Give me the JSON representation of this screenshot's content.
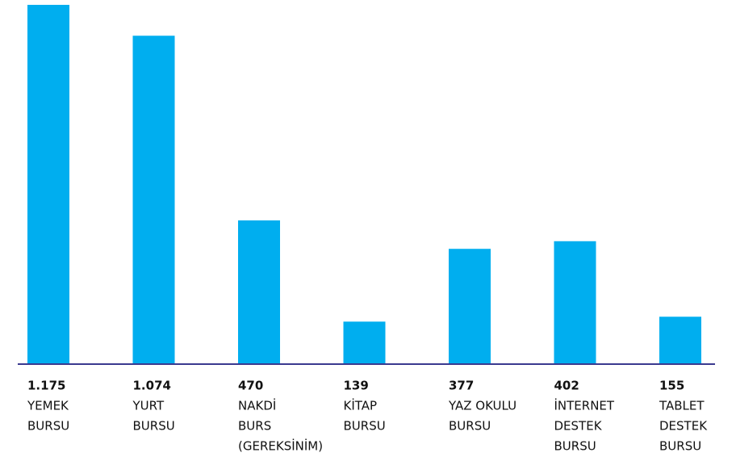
{
  "chart_data": {
    "type": "bar",
    "color": "#00aeef",
    "categories": [
      [
        "YEMEK",
        "BURSU"
      ],
      [
        "YURT",
        "BURSU"
      ],
      [
        "NAKDİ",
        "BURS",
        "(GEREKSİNİM)"
      ],
      [
        "KİTAP",
        "BURSU"
      ],
      [
        "YAZ OKULU",
        "BURSU"
      ],
      [
        "İNTERNET",
        "DESTEK",
        "BURSU"
      ],
      [
        "TABLET",
        "DESTEK",
        "BURSU"
      ]
    ],
    "values": [
      1175,
      1074,
      470,
      139,
      377,
      402,
      155
    ],
    "value_labels": [
      "1.175",
      "1.074",
      "470",
      "139",
      "377",
      "402",
      "155"
    ]
  }
}
